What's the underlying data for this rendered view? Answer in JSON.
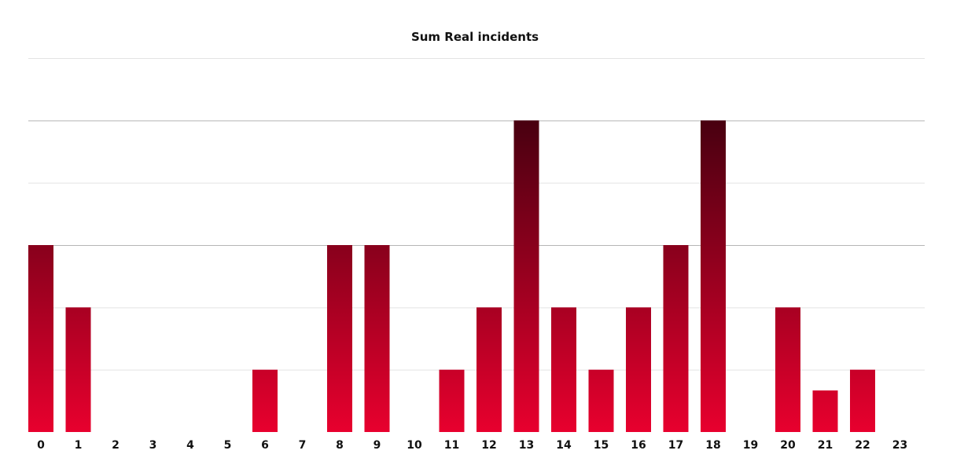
{
  "chart_data": {
    "type": "bar",
    "title": "Sum Real incidents",
    "xlabel": "",
    "ylabel": "",
    "categories": [
      "0",
      "1",
      "2",
      "3",
      "4",
      "5",
      "6",
      "7",
      "8",
      "9",
      "10",
      "11",
      "12",
      "13",
      "14",
      "15",
      "16",
      "17",
      "18",
      "19",
      "20",
      "21",
      "22",
      "23"
    ],
    "values": [
      9,
      6,
      0,
      0,
      0,
      0,
      3,
      0,
      9,
      9,
      0,
      3,
      6,
      15,
      6,
      3,
      6,
      9,
      15,
      0,
      6,
      2,
      3,
      0
    ],
    "ylim": [
      0,
      18
    ],
    "grid": true,
    "gridlines": [
      0,
      3,
      6,
      9,
      12,
      15,
      18
    ],
    "colors": {
      "bar_low": "#e8002e",
      "bar_high": "#480010",
      "grid": "#e3e3e3",
      "grid_major": "#b5b5b5"
    }
  }
}
